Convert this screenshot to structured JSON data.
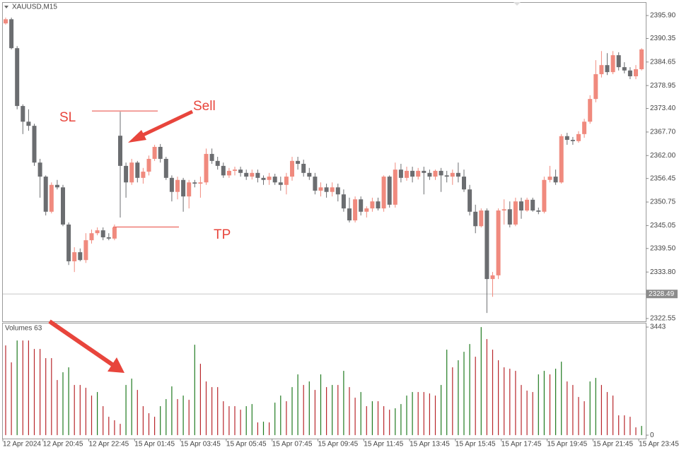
{
  "chart_data": [
    {
      "type": "candlestick",
      "title": "XAUUSD,M15",
      "categories": [
        "12 Apr 2024",
        null,
        null,
        null,
        null,
        null,
        null,
        "12 Apr 20:45",
        null,
        null,
        null,
        null,
        null,
        null,
        null,
        "12 Apr 22:45",
        null,
        null,
        null,
        null,
        null,
        null,
        null,
        "15 Apr 01:45",
        null,
        null,
        null,
        null,
        null,
        null,
        null,
        "15 Apr 03:45",
        null,
        null,
        null,
        null,
        null,
        null,
        null,
        "15 Apr 05:45",
        null,
        null,
        null,
        null,
        null,
        null,
        null,
        "15 Apr 07:45",
        null,
        null,
        null,
        null,
        null,
        null,
        null,
        "15 Apr 09:45",
        null,
        null,
        null,
        null,
        null,
        null,
        null,
        "15 Apr 11:45",
        null,
        null,
        null,
        null,
        null,
        null,
        null,
        "15 Apr 13:45",
        null,
        null,
        null,
        null,
        null,
        null,
        null,
        "15 Apr 15:45",
        null,
        null,
        null,
        null,
        null,
        null,
        null,
        "15 Apr 17:45",
        null,
        null,
        null,
        null,
        null,
        null,
        null,
        "15 Apr 19:45",
        null,
        null,
        null,
        null,
        null,
        null,
        null,
        "15 Apr 21:45",
        null,
        null,
        null,
        null,
        null,
        null,
        null,
        "15 Apr 23:45"
      ],
      "open": [
        2394.0,
        2395.0,
        2388.0,
        2374.0,
        2370.2,
        2369.2,
        2360.3,
        2356.9,
        2348.4,
        2354.9,
        2354.3,
        2345.3,
        2336.4,
        2338.6,
        2336.7,
        2341.5,
        2343.2,
        2343.9,
        2342.2,
        2341.9,
        2366.8,
        2359.5,
        2355.5,
        2360.3,
        2356.6,
        2358.1,
        2361.2,
        2364.1,
        2361.2,
        2356.6,
        2353.2,
        2356.1,
        2352.1,
        2355.5,
        2355.2,
        2355.5,
        2362.4,
        2360.7,
        2359.5,
        2357.2,
        2358.3,
        2358.6,
        2357.8,
        2356.9,
        2357.8,
        2356.6,
        2356.1,
        2356.9,
        2355.5,
        2354.9,
        2356.9,
        2360.7,
        2360.0,
        2357.8,
        2356.9,
        2353.5,
        2354.3,
        2353.2,
        2354.3,
        2352.6,
        2349.2,
        2346.3,
        2351.4,
        2348.4,
        2349.2,
        2350.9,
        2349.2,
        2356.9,
        2350.1,
        2358.6,
        2356.6,
        2358.3,
        2356.9,
        2358.3,
        2357.8,
        2356.9,
        2358.3,
        2357.2,
        2356.9,
        2357.8,
        2356.9,
        2353.8,
        2348.4,
        2344.9,
        2348.7,
        2332.1,
        2333.0,
        2348.7,
        2349.0,
        2345.3,
        2350.9,
        2348.7,
        2351.3,
        2348.7,
        2348.4,
        2356.1,
        2356.9,
        2355.5,
        2366.7,
        2365.8,
        2365.5,
        2367.2,
        2370.2,
        2375.7,
        2381.7,
        2383.9,
        2382.2,
        2386.3,
        2383.4,
        2382.6,
        2381.2,
        2382.9
      ],
      "high": [
        2395.4,
        2395.4,
        2388.5,
        2374.4,
        2373.2,
        2369.7,
        2361.2,
        2357.2,
        2355.5,
        2356.1,
        2354.9,
        2345.8,
        2339.8,
        2339.5,
        2343.2,
        2344.1,
        2344.6,
        2344.6,
        2343.2,
        2345.3,
        2372.6,
        2360.3,
        2361.2,
        2360.7,
        2359.0,
        2362.0,
        2364.6,
        2364.8,
        2361.7,
        2357.2,
        2356.9,
        2356.6,
        2356.1,
        2356.1,
        2356.9,
        2363.7,
        2363.7,
        2361.7,
        2360.3,
        2359.0,
        2359.3,
        2359.3,
        2358.6,
        2358.6,
        2358.6,
        2357.2,
        2357.8,
        2357.6,
        2356.9,
        2357.8,
        2361.7,
        2361.7,
        2361.0,
        2359.0,
        2357.8,
        2355.5,
        2355.2,
        2355.5,
        2355.2,
        2353.8,
        2351.8,
        2352.1,
        2352.1,
        2349.7,
        2351.8,
        2351.8,
        2357.2,
        2357.2,
        2360.3,
        2360.0,
        2359.3,
        2359.3,
        2359.0,
        2359.3,
        2358.6,
        2358.6,
        2359.0,
        2358.3,
        2358.6,
        2360.3,
        2358.6,
        2354.9,
        2350.1,
        2349.2,
        2349.2,
        2333.8,
        2349.2,
        2351.4,
        2350.9,
        2351.8,
        2351.8,
        2351.8,
        2351.8,
        2349.4,
        2356.9,
        2359.5,
        2358.6,
        2367.2,
        2367.5,
        2366.5,
        2367.9,
        2370.9,
        2376.6,
        2385.1,
        2387.3,
        2386.8,
        2387.3,
        2387.0,
        2384.6,
        2383.4,
        2383.9,
        2388.0
      ],
      "low": [
        2393.7,
        2387.7,
        2373.2,
        2367.2,
        2368.0,
        2359.5,
        2351.8,
        2347.5,
        2348.0,
        2353.8,
        2344.9,
        2335.5,
        2333.8,
        2336.4,
        2336.0,
        2340.7,
        2342.7,
        2341.5,
        2341.5,
        2341.5,
        2347.0,
        2351.8,
        2354.9,
        2355.5,
        2355.2,
        2357.2,
        2360.7,
        2360.3,
        2356.1,
        2350.9,
        2351.4,
        2348.4,
        2349.2,
        2354.3,
        2351.8,
        2354.9,
        2360.0,
        2358.6,
        2356.6,
        2356.6,
        2357.2,
        2356.9,
        2356.1,
        2356.2,
        2355.5,
        2354.9,
        2354.9,
        2354.9,
        2353.5,
        2352.6,
        2355.9,
        2358.6,
        2356.9,
        2356.1,
        2352.6,
        2352.1,
        2351.8,
        2352.1,
        2350.9,
        2348.4,
        2345.8,
        2345.8,
        2347.5,
        2347.0,
        2348.4,
        2348.7,
        2348.4,
        2349.4,
        2349.4,
        2355.5,
        2355.9,
        2355.5,
        2356.2,
        2352.6,
        2356.1,
        2356.1,
        2353.2,
        2355.5,
        2354.9,
        2355.5,
        2353.2,
        2347.5,
        2343.2,
        2344.6,
        2323.9,
        2327.8,
        2332.1,
        2345.3,
        2344.6,
        2344.9,
        2346.7,
        2348.4,
        2348.4,
        2347.8,
        2348.0,
        2355.5,
        2354.9,
        2355.2,
        2364.6,
        2364.6,
        2365.1,
        2366.3,
        2369.7,
        2374.9,
        2380.9,
        2381.5,
        2381.7,
        2382.6,
        2381.9,
        2380.5,
        2380.5,
        2382.6
      ],
      "close": [
        2395.0,
        2388.0,
        2374.0,
        2370.2,
        2369.2,
        2360.3,
        2356.9,
        2348.4,
        2354.9,
        2354.3,
        2345.3,
        2336.4,
        2338.6,
        2336.7,
        2341.5,
        2343.2,
        2343.9,
        2342.2,
        2341.9,
        2344.6,
        2359.5,
        2355.5,
        2360.3,
        2356.6,
        2358.1,
        2361.2,
        2364.1,
        2361.2,
        2356.6,
        2353.2,
        2356.1,
        2352.1,
        2355.5,
        2355.2,
        2355.5,
        2362.4,
        2360.7,
        2359.5,
        2357.2,
        2358.3,
        2358.6,
        2357.8,
        2356.9,
        2357.8,
        2356.6,
        2356.1,
        2356.9,
        2355.5,
        2354.9,
        2356.9,
        2360.7,
        2360.0,
        2357.8,
        2356.9,
        2353.5,
        2354.3,
        2353.2,
        2354.3,
        2352.6,
        2349.2,
        2346.3,
        2351.4,
        2348.4,
        2349.2,
        2350.9,
        2349.2,
        2356.9,
        2350.1,
        2358.6,
        2356.6,
        2358.3,
        2356.9,
        2358.3,
        2357.8,
        2356.9,
        2358.3,
        2357.2,
        2356.9,
        2357.8,
        2356.9,
        2353.8,
        2348.4,
        2344.9,
        2348.7,
        2332.1,
        2333.0,
        2348.7,
        2349.0,
        2345.3,
        2350.9,
        2348.7,
        2351.3,
        2348.7,
        2348.4,
        2356.1,
        2356.9,
        2355.5,
        2366.7,
        2365.8,
        2365.5,
        2367.2,
        2370.2,
        2375.7,
        2381.7,
        2383.9,
        2382.2,
        2386.3,
        2383.4,
        2382.6,
        2381.2,
        2382.9,
        2387.7
      ],
      "up_color": "#f08a7e",
      "down_color": "#6b6d70",
      "ylim": [
        2321.86,
        2399.15
      ],
      "yticks": [
        {
          "value": 2395.9,
          "label": "2395.90"
        },
        {
          "value": 2390.35,
          "label": "2390.35"
        },
        {
          "value": 2384.65,
          "label": "2384.65"
        },
        {
          "value": 2378.95,
          "label": "2378.95"
        },
        {
          "value": 2373.4,
          "label": "2373.40"
        },
        {
          "value": 2367.7,
          "label": "2367.70"
        },
        {
          "value": 2362,
          "label": "2362.00"
        },
        {
          "value": 2356.45,
          "label": "2356.45"
        },
        {
          "value": 2350.75,
          "label": "2350.75"
        },
        {
          "value": 2345.05,
          "label": "2345.05"
        },
        {
          "value": 2339.5,
          "label": "2339.50"
        },
        {
          "value": 2333.8,
          "label": "2333.80"
        },
        {
          "value": 2322.55,
          "label": "2322.55"
        }
      ],
      "price_line": {
        "value": 2328.49,
        "label": "2328.49"
      },
      "levels": [
        {
          "label": "SL",
          "value": 2372.8,
          "color": "#e8453c"
        },
        {
          "label": "TP",
          "value": 2344.7,
          "color": "#e8453c"
        }
      ],
      "annotations": [
        {
          "text": "Sell"
        }
      ]
    },
    {
      "type": "bar",
      "title": "Volumes 63",
      "values": [
        2858,
        2318,
        3015,
        3015,
        3015,
        2745,
        2745,
        2453,
        2453,
        1755,
        2003,
        2160,
        1598,
        1598,
        1508,
        1260,
        1373,
        923,
        585,
        473,
        360,
        1598,
        1800,
        1440,
        923,
        698,
        585,
        923,
        1148,
        1553,
        1148,
        1260,
        1125,
        2880,
        2273,
        1710,
        1530,
        1530,
        1080,
        923,
        923,
        810,
        923,
        990,
        405,
        428,
        405,
        1035,
        1260,
        1080,
        1530,
        1935,
        1598,
        1710,
        1440,
        1935,
        1530,
        1598,
        1598,
        2048,
        1530,
        1193,
        1373,
        923,
        1080,
        1080,
        923,
        810,
        855,
        990,
        1260,
        1373,
        1373,
        1373,
        1328,
        1260,
        1598,
        2723,
        2160,
        2385,
        2655,
        2903,
        2498,
        3443,
        3060,
        2723,
        2385,
        2160,
        2115,
        2048,
        1598,
        1418,
        1373,
        1935,
        2048,
        1935,
        2115,
        2340,
        1710,
        1598,
        1215,
        1080,
        1710,
        1823,
        1598,
        1373,
        1260,
        630,
        630,
        585,
        248,
        293
      ],
      "up_color": "#1f7a1f",
      "down_color": "#b8262b",
      "ylim": [
        -110,
        3580
      ],
      "yticks": [
        0,
        3443
      ]
    }
  ]
}
